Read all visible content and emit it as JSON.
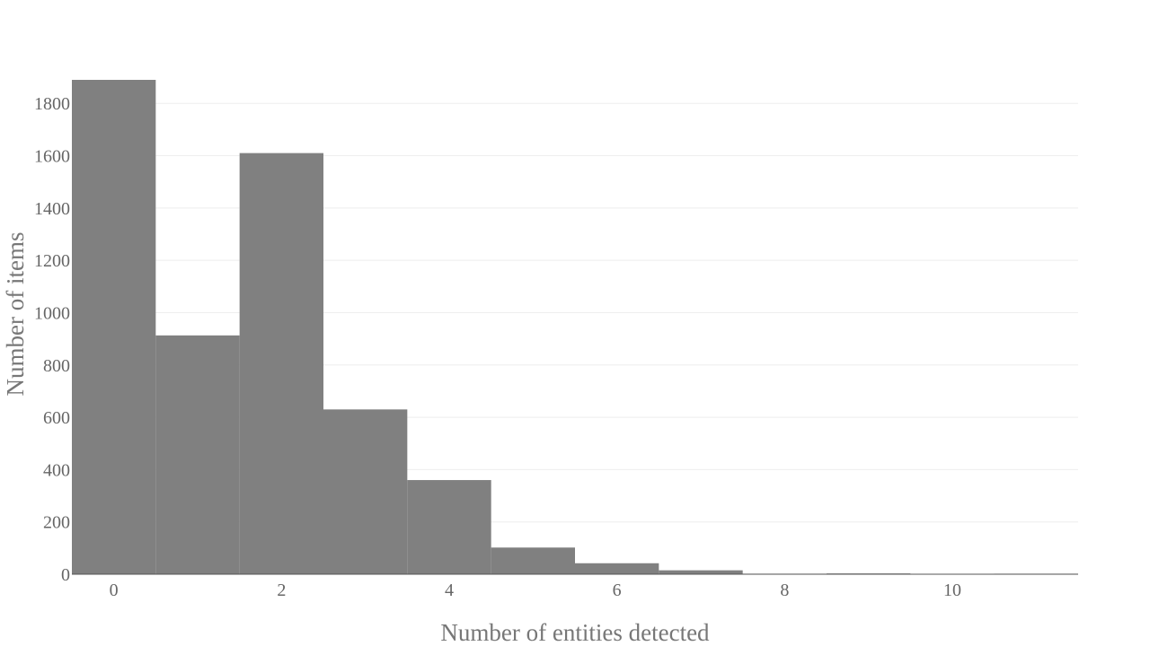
{
  "chart_data": {
    "type": "bar",
    "title": "",
    "xlabel": "Number of entities detected",
    "ylabel": "Number of items",
    "bar_color": "#808080",
    "bins": [
      {
        "x": 0,
        "value": 1890
      },
      {
        "x": 1,
        "value": 913
      },
      {
        "x": 2,
        "value": 1610
      },
      {
        "x": 3,
        "value": 630
      },
      {
        "x": 4,
        "value": 360
      },
      {
        "x": 5,
        "value": 102
      },
      {
        "x": 6,
        "value": 42
      },
      {
        "x": 7,
        "value": 15
      },
      {
        "x": 8,
        "value": 2
      },
      {
        "x": 9,
        "value": 3
      },
      {
        "x": 10,
        "value": 1
      },
      {
        "x": 11,
        "value": 2
      }
    ],
    "xlim": [
      -0.5,
      11.5
    ],
    "ylim": [
      0,
      1890
    ],
    "xticks": [
      "0",
      "2",
      "4",
      "6",
      "8",
      "10"
    ],
    "yticks": [
      "0",
      "200",
      "400",
      "600",
      "800",
      "1000",
      "1200",
      "1400",
      "1600",
      "1800"
    ],
    "grid": true,
    "legend": false
  }
}
